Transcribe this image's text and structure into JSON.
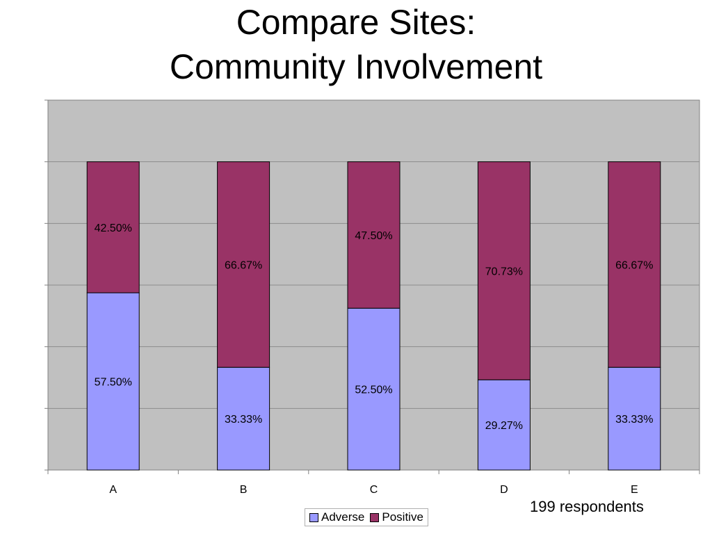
{
  "title": {
    "line1": "Compare Sites:",
    "line2": "Community Involvement"
  },
  "note": "199 respondents",
  "colors": {
    "adverse": "#9999ff",
    "positive": "#993366",
    "plot_background": "#c0c0c0",
    "gridline": "#8c8c8c"
  },
  "chart_data": {
    "type": "bar",
    "stacked": true,
    "percent_stacked": true,
    "categories": [
      "A",
      "B",
      "C",
      "D",
      "E"
    ],
    "series": [
      {
        "name": "Adverse",
        "values": [
          57.5,
          33.33,
          52.5,
          29.27,
          33.33
        ],
        "labels": [
          "57.50%",
          "33.33%",
          "52.50%",
          "29.27%",
          "33.33%"
        ]
      },
      {
        "name": "Positive",
        "values": [
          42.5,
          66.67,
          47.5,
          70.73,
          66.67
        ],
        "labels": [
          "42.50%",
          "66.67%",
          "47.50%",
          "70.73%",
          "66.67%"
        ]
      }
    ],
    "ylim": [
      0,
      120
    ],
    "ytick_step": 20,
    "y_tick_labels_shown": false,
    "grid": true,
    "legend_position": "bottom-center"
  },
  "legend": {
    "items": [
      {
        "label": "Adverse",
        "color": "#9999ff"
      },
      {
        "label": "Positive",
        "color": "#993366"
      }
    ]
  }
}
